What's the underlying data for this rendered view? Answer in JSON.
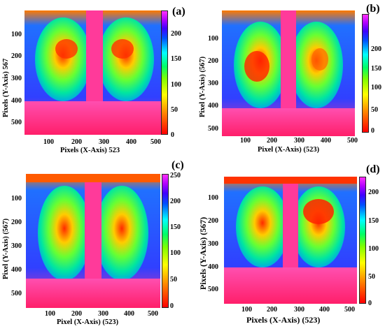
{
  "panels": [
    {
      "tag": "(a)",
      "xlabel": "Pixels (X-Axis) 523",
      "ylabel": "Pixels (Y-Axis) 567",
      "xticks": [
        "100",
        "200",
        "300",
        "400",
        "500"
      ],
      "yticks": [
        "100",
        "200",
        "300",
        "400",
        "500"
      ],
      "cbar_ticks": [
        "200",
        "150",
        "100",
        "50",
        "0"
      ]
    },
    {
      "tag": "(b)",
      "xlabel": "Pixel (X-Axis) (523)",
      "ylabel": "Pixel (Y-Axis) (567)",
      "xticks": [
        "100",
        "200",
        "300",
        "400",
        "500"
      ],
      "yticks": [
        "100",
        "200",
        "300",
        "400",
        "500"
      ],
      "cbar_ticks": [
        "200",
        "150",
        "100",
        "50",
        "0"
      ]
    },
    {
      "tag": "(c)",
      "xlabel": "Pixel (X-Axis) (523)",
      "ylabel": "Pixel (Y-Axis) (567)",
      "xticks": [
        "100",
        "200",
        "300",
        "400",
        "500"
      ],
      "yticks": [
        "100",
        "200",
        "300",
        "400",
        "500"
      ],
      "cbar_ticks": [
        "250",
        "200",
        "150",
        "100",
        "50",
        "0"
      ]
    },
    {
      "tag": "(d)",
      "xlabel": "Pixels (X-Axis) (523)",
      "ylabel": "Pixels (Y-Axis) (567)",
      "xticks": [
        "100",
        "200",
        "300",
        "400",
        "500"
      ],
      "yticks": [
        "100",
        "200",
        "300",
        "400",
        "500"
      ],
      "cbar_ticks": [
        "200",
        "150",
        "100",
        "50",
        "0"
      ]
    }
  ]
}
